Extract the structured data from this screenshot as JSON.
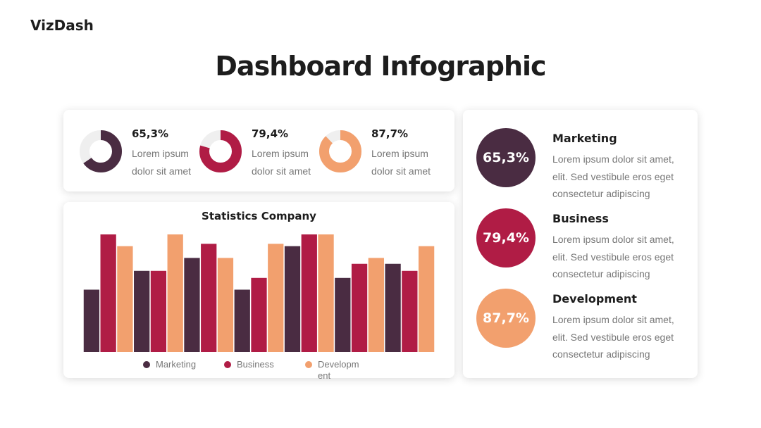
{
  "header": {
    "brand": "VizDash",
    "title": "Dashboard Infographic"
  },
  "kpis": [
    {
      "value": 65.3,
      "value_label": "65,3%",
      "text": "Lorem ipsum dolor sit amet",
      "color": "#4a2c42"
    },
    {
      "value": 79.4,
      "value_label": "79,4%",
      "text": "Lorem ipsum dolor sit amet",
      "color": "#b01c45"
    },
    {
      "value": 87.7,
      "value_label": "87,7%",
      "text": "Lorem ipsum dolor sit amet",
      "color": "#f2a06e"
    }
  ],
  "cards": [
    {
      "label": "65,3%",
      "title": "Marketing",
      "text": "Lorem ipsum dolor sit amet, elit. Sed vestibule eros eget consectetur adipiscing",
      "color": "#4a2c42"
    },
    {
      "label": "79,4%",
      "title": "Business",
      "text": "Lorem ipsum dolor sit amet, elit. Sed vestibule eros eget consectetur adipiscing",
      "color": "#b01c45"
    },
    {
      "label": "87,7%",
      "title": "Development",
      "text": "Lorem ipsum dolor sit amet, elit. Sed vestibule eros eget consectetur adipiscing",
      "color": "#f2a06e"
    }
  ],
  "chart_data": {
    "type": "bar",
    "title": "Statistics Company",
    "categories": [
      null,
      null,
      null,
      null,
      null,
      null,
      null
    ],
    "series": [
      {
        "name": "Marketing",
        "color": "#4a2c42",
        "values": [
          53,
          69,
          80,
          53,
          90,
          63,
          75
        ]
      },
      {
        "name": "Business",
        "color": "#b01c45",
        "values": [
          100,
          69,
          92,
          63,
          100,
          75,
          69
        ]
      },
      {
        "name": "Development",
        "color": "#f2a06e",
        "values": [
          90,
          100,
          80,
          92,
          100,
          80,
          90
        ]
      }
    ],
    "ylim": [
      0,
      100
    ]
  }
}
